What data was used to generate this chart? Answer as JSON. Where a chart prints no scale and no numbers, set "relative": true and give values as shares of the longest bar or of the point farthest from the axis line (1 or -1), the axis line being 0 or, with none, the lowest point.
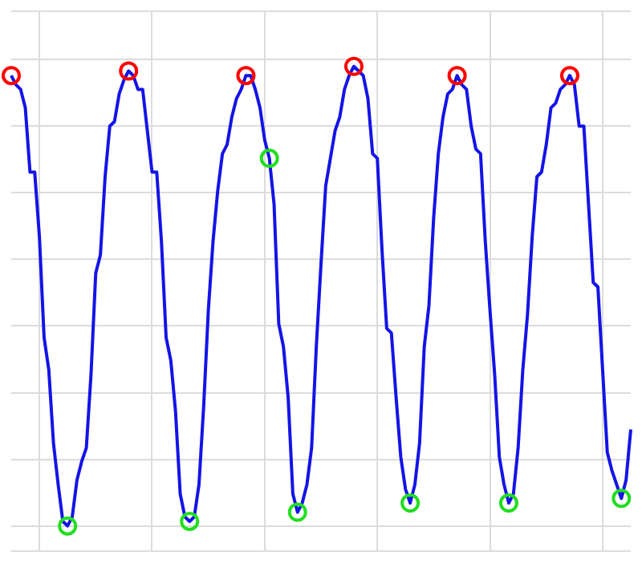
{
  "chart_data": {
    "type": "line",
    "relative": true,
    "grid": true,
    "categories": [
      null,
      null,
      null,
      null,
      null,
      null,
      null,
      null,
      null,
      null,
      null,
      null,
      null,
      null,
      null,
      null,
      null,
      null,
      null,
      null,
      null,
      null,
      null,
      null,
      null,
      null,
      null,
      null,
      null,
      null,
      null,
      null,
      null,
      null,
      null,
      null,
      null,
      null,
      null,
      null,
      null,
      null,
      null,
      null,
      null,
      null,
      null,
      null,
      null,
      null,
      null,
      null,
      null,
      null,
      null,
      null,
      null,
      null,
      null,
      null,
      null,
      null,
      null,
      null,
      null,
      null,
      null,
      null,
      null,
      null,
      null,
      null,
      null,
      null,
      null,
      null,
      null,
      null,
      null,
      null,
      null,
      null,
      null,
      null,
      null,
      null,
      null,
      null,
      null,
      null,
      null,
      null,
      null,
      null,
      null,
      null,
      null,
      null,
      null,
      null,
      null,
      null,
      null,
      null,
      null,
      null,
      null,
      null,
      null,
      null,
      null,
      null,
      null,
      null,
      null,
      null,
      null,
      null,
      null,
      null,
      null,
      null,
      null,
      null,
      null,
      null,
      null,
      null,
      null,
      null,
      null,
      null,
      null
    ],
    "series": [
      {
        "color": "#1414e6",
        "values": [
          0.98,
          0.96,
          0.95,
          0.91,
          0.77,
          0.77,
          0.63,
          0.41,
          0.34,
          0.18,
          0.09,
          0.01,
          0,
          0.02,
          0.1,
          0.14,
          0.17,
          0.33,
          0.55,
          0.59,
          0.76,
          0.87,
          0.88,
          0.94,
          0.97,
          0.99,
          0.98,
          0.95,
          0.95,
          0.86,
          0.77,
          0.77,
          0.62,
          0.41,
          0.36,
          0.25,
          0.07,
          0.02,
          0.01,
          0.02,
          0.09,
          0.26,
          0.47,
          0.62,
          0.73,
          0.81,
          0.83,
          0.89,
          0.93,
          0.95,
          0.98,
          0.98,
          0.95,
          0.91,
          0.84,
          0.8,
          0.7,
          0.44,
          0.39,
          0.28,
          0.07,
          0.03,
          0.05,
          0.09,
          0.17,
          0.39,
          0.57,
          0.74,
          0.8,
          0.86,
          0.89,
          0.95,
          0.98,
          1,
          0.99,
          0.98,
          0.93,
          0.81,
          0.8,
          0.6,
          0.43,
          0.42,
          0.28,
          0.15,
          0.08,
          0.05,
          0.09,
          0.18,
          0.39,
          0.48,
          0.67,
          0.81,
          0.89,
          0.94,
          0.95,
          0.98,
          0.96,
          0.95,
          0.87,
          0.82,
          0.81,
          0.62,
          0.47,
          0.33,
          0.15,
          0.09,
          0.05,
          0.07,
          0.17,
          0.34,
          0.46,
          0.63,
          0.76,
          0.77,
          0.83,
          0.91,
          0.92,
          0.95,
          0.96,
          0.98,
          0.96,
          0.87,
          0.87,
          0.7,
          0.53,
          0.52,
          0.34,
          0.16,
          0.12,
          0.09,
          0.06,
          0.1,
          0.21
        ],
        "colors": [
          "#ff0000",
          null,
          null,
          null,
          null,
          null,
          null,
          null,
          null,
          null,
          null,
          null,
          "#22dd22",
          null,
          null,
          null,
          null,
          null,
          null,
          null,
          null,
          null,
          null,
          null,
          null,
          "#ff0000",
          null,
          null,
          null,
          null,
          null,
          null,
          null,
          null,
          null,
          null,
          null,
          null,
          "#22dd22",
          null,
          null,
          null,
          null,
          null,
          null,
          null,
          null,
          null,
          null,
          null,
          "#ff0000",
          null,
          null,
          null,
          null,
          "#22dd22",
          null,
          null,
          null,
          null,
          null,
          "#22dd22",
          null,
          null,
          null,
          null,
          null,
          null,
          null,
          null,
          null,
          null,
          null,
          "#ff0000",
          null,
          null,
          null,
          null,
          null,
          null,
          null,
          null,
          null,
          null,
          null,
          "#22dd22",
          null,
          null,
          null,
          null,
          null,
          null,
          null,
          null,
          null,
          "#ff0000",
          null,
          null,
          null,
          null,
          null,
          null,
          null,
          null,
          null,
          null,
          "#22dd22",
          null,
          null,
          null,
          null,
          null,
          null,
          null,
          null,
          null,
          null,
          null,
          null,
          "#ff0000",
          null,
          null,
          null,
          null,
          null,
          null,
          null,
          null,
          null,
          null,
          "#22dd22",
          null,
          null
        ]
      }
    ]
  }
}
